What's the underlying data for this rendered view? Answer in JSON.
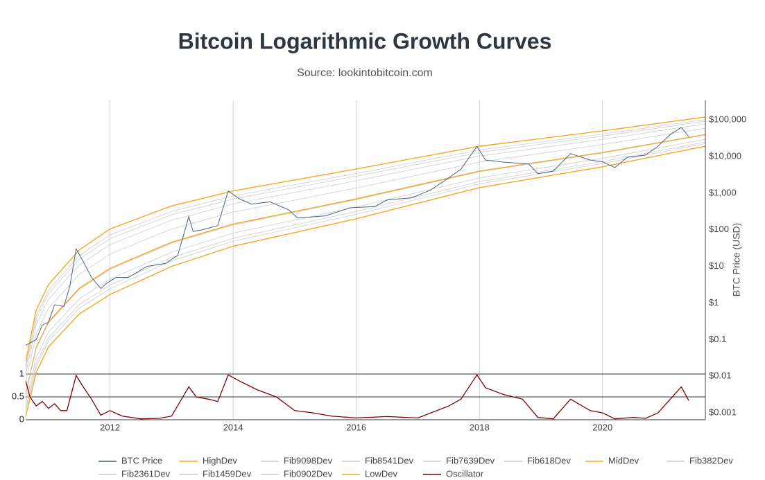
{
  "chart_data": {
    "type": "line",
    "title": "Bitcoin Logarithmic Growth Curves",
    "subtitle": "Source: lookintobitcoin.com",
    "y_label": "BTC Price (USD)",
    "ylog": true,
    "ylim": [
      0.00065,
      340000
    ],
    "yticks": [
      {
        "value": 100000,
        "label": "$100,000"
      },
      {
        "value": 10000,
        "label": "$10,000"
      },
      {
        "value": 1000,
        "label": "$1,000"
      },
      {
        "value": 100,
        "label": "$100"
      },
      {
        "value": 10,
        "label": "$10"
      },
      {
        "value": 1,
        "label": "$1"
      },
      {
        "value": 0.1,
        "label": "$0.1"
      },
      {
        "value": 0.01,
        "label": "$0.01"
      },
      {
        "value": 0.001,
        "label": "$0.001"
      }
    ],
    "y2lim": [
      0,
      1
    ],
    "y2ticks": [
      0,
      0.5,
      1
    ],
    "xlim": [
      2010.63,
      2021.67
    ],
    "xticks": [
      2012,
      2014,
      2016,
      2018,
      2020
    ],
    "grid": true,
    "legend": "bottom",
    "x": [
      2010.63,
      2010.8,
      2011,
      2011.5,
      2012,
      2013,
      2014,
      2016,
      2018,
      2020,
      2021.67
    ],
    "series": [
      {
        "name": "BTC Price",
        "color": "#4a6480",
        "x": [
          2010.63,
          2010.8,
          2010.9,
          2011.0,
          2011.1,
          2011.25,
          2011.35,
          2011.45,
          2011.55,
          2011.7,
          2011.85,
          2011.95,
          2012.1,
          2012.3,
          2012.6,
          2012.9,
          2013.1,
          2013.28,
          2013.35,
          2013.5,
          2013.75,
          2013.92,
          2014.1,
          2014.3,
          2014.6,
          2014.9,
          2015.05,
          2015.5,
          2015.9,
          2016.3,
          2016.5,
          2016.9,
          2017.2,
          2017.5,
          2017.7,
          2017.96,
          2018.1,
          2018.4,
          2018.8,
          2018.95,
          2019.2,
          2019.48,
          2019.8,
          2020.0,
          2020.2,
          2020.4,
          2020.7,
          2020.9,
          2021.1,
          2021.28,
          2021.4
        ],
        "values": [
          0.07,
          0.1,
          0.25,
          0.3,
          0.9,
          0.8,
          3,
          30,
          15,
          5,
          2.5,
          3.5,
          5,
          5,
          10,
          12,
          20,
          230,
          90,
          100,
          130,
          1150,
          700,
          500,
          580,
          350,
          210,
          240,
          400,
          430,
          650,
          750,
          1200,
          2600,
          4500,
          19000,
          8000,
          7000,
          6300,
          3400,
          4000,
          12000,
          8000,
          7200,
          5000,
          9500,
          11000,
          19000,
          40000,
          62000,
          35000
        ]
      },
      {
        "name": "HighDev",
        "color": "#f5a623",
        "values": [
          0.0251,
          0.631,
          3.16,
          28.2,
          105,
          447,
          1148,
          4570,
          19100,
          50100,
          120000
        ]
      },
      {
        "name": "Fib9098Dev",
        "color": "#cccccc",
        "values": [
          0.0184,
          0.444,
          2.22,
          19.6,
          72.3,
          317,
          839,
          3440,
          15100,
          40900,
          102000
        ]
      },
      {
        "name": "Fib8541Dev",
        "color": "#cccccc",
        "values": [
          0.0152,
          0.356,
          1.78,
          15.7,
          57.4,
          256,
          692,
          2900,
          13000,
          36100,
          91800
        ]
      },
      {
        "name": "Fib7639Dev",
        "color": "#cccccc",
        "values": [
          0.0111,
          0.251,
          1.26,
          10.9,
          39.5,
          182,
          505,
          2180,
          10300,
          29400,
          77800
        ]
      },
      {
        "name": "Fib618Dev",
        "color": "#cccccc",
        "values": [
          0.0067,
          0.142,
          0.712,
          6.05,
          21.7,
          105,
          304,
          1380,
          7050,
          21200,
          59400
        ]
      },
      {
        "name": "MidDev",
        "color": "#f5a623",
        "values": [
          0.00316,
          0.0603,
          0.302,
          2.51,
          8.83,
          45.7,
          143,
          698,
          4000,
          12900,
          39800
        ]
      },
      {
        "name": "Fib382Dev",
        "color": "#cccccc",
        "values": [
          0.00297,
          0.0561,
          0.281,
          2.34,
          8.2,
          42.7,
          134,
          661,
          3820,
          12400,
          38500
        ]
      },
      {
        "name": "Fib2361Dev",
        "color": "#cccccc",
        "values": [
          0.00179,
          0.0317,
          0.159,
          1.3,
          4.5,
          24.5,
          80.7,
          418,
          2610,
          8930,
          29400
        ]
      },
      {
        "name": "Fib1459Dev",
        "color": "#cccccc",
        "values": [
          0.00132,
          0.0223,
          0.112,
          0.902,
          3.1,
          17.4,
          58.9,
          315,
          2070,
          7290,
          24900
        ]
      },
      {
        "name": "Fib0902Dev",
        "color": "#cccccc",
        "values": [
          0.00108,
          0.0179,
          0.0896,
          0.721,
          2.46,
          14.1,
          48.5,
          265,
          1790,
          6430,
          22500
        ]
      },
      {
        "name": "LowDev",
        "color": "#f5a623",
        "values": [
          0.00079,
          0.0126,
          0.0631,
          0.501,
          1.7,
          10,
          35.5,
          200,
          1413,
          5250,
          19100
        ]
      },
      {
        "name": "Oscillator",
        "color": "#7b0000",
        "axis": "y2",
        "x": [
          2010.63,
          2010.7,
          2010.8,
          2010.9,
          2011.0,
          2011.1,
          2011.2,
          2011.3,
          2011.45,
          2011.55,
          2011.7,
          2011.85,
          2012.0,
          2012.2,
          2012.5,
          2012.8,
          2013.0,
          2013.28,
          2013.4,
          2013.6,
          2013.75,
          2013.92,
          2014.1,
          2014.4,
          2014.7,
          2015.0,
          2015.3,
          2015.6,
          2016.0,
          2016.5,
          2017.0,
          2017.5,
          2017.7,
          2017.96,
          2018.1,
          2018.4,
          2018.7,
          2018.95,
          2019.2,
          2019.48,
          2019.8,
          2020.0,
          2020.2,
          2020.5,
          2020.7,
          2020.9,
          2021.1,
          2021.28,
          2021.4
        ],
        "values": [
          0.85,
          0.5,
          0.3,
          0.4,
          0.25,
          0.35,
          0.2,
          0.2,
          0.97,
          0.75,
          0.45,
          0.1,
          0.2,
          0.08,
          0.02,
          0.03,
          0.08,
          0.72,
          0.5,
          0.45,
          0.4,
          0.98,
          0.85,
          0.65,
          0.5,
          0.2,
          0.15,
          0.08,
          0.04,
          0.07,
          0.04,
          0.3,
          0.45,
          0.98,
          0.7,
          0.55,
          0.45,
          0.05,
          0.02,
          0.45,
          0.2,
          0.15,
          0.02,
          0.05,
          0.03,
          0.15,
          0.45,
          0.72,
          0.42
        ]
      }
    ]
  }
}
